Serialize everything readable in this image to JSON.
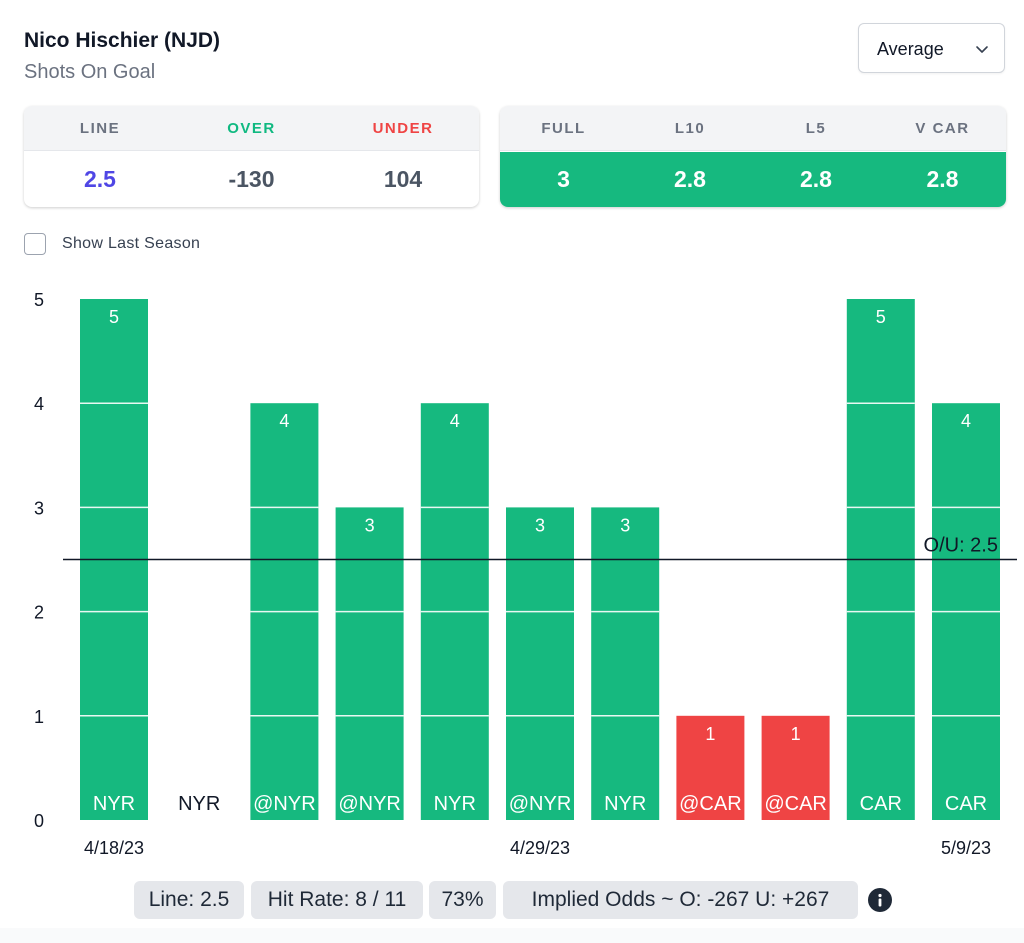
{
  "header": {
    "player_name": "Nico Hischier (NJD)",
    "stat_name": "Shots On Goal",
    "dropdown": {
      "selected": "Average",
      "icon": "chevron-down-icon"
    }
  },
  "odds_card": {
    "headers": [
      "LINE",
      "OVER",
      "UNDER"
    ],
    "values": [
      "2.5",
      "-130",
      "104"
    ],
    "colors": {
      "line": "#4f46e5",
      "over": "#10b981",
      "under": "#ef4444"
    }
  },
  "averages_card": {
    "headers": [
      "FULL",
      "L10",
      "L5",
      "V CAR"
    ],
    "values": [
      "3",
      "2.8",
      "2.8",
      "2.8"
    ],
    "color": "#16b97f"
  },
  "show_last_season": {
    "label": "Show Last Season",
    "checked": false
  },
  "chart_data": {
    "type": "bar",
    "title": "",
    "xlabel": "",
    "ylabel": "",
    "ylim": [
      0,
      5
    ],
    "yticks": [
      0,
      1,
      2,
      3,
      4,
      5
    ],
    "categories": [
      "NYR",
      "NYR",
      "@NYR",
      "@NYR",
      "NYR",
      "@NYR",
      "NYR",
      "@CAR",
      "@CAR",
      "CAR",
      "CAR"
    ],
    "values": [
      5,
      0,
      4,
      3,
      4,
      3,
      3,
      1,
      1,
      5,
      4
    ],
    "date_labels": [
      {
        "index": 0,
        "label": "4/18/23"
      },
      {
        "index": 5,
        "label": "4/29/23"
      },
      {
        "index": 10,
        "label": "5/9/23"
      }
    ],
    "line": {
      "value": 2.5,
      "label": "O/U: 2.5"
    },
    "colors": {
      "over": "#16b97f",
      "under": "#ef4444"
    }
  },
  "summary": {
    "line": "Line: 2.5",
    "hit_rate": "Hit Rate: 8 / 11",
    "percent": "73%",
    "implied_odds": "Implied Odds ~ O: -267 U: +267",
    "info_icon": "info-icon"
  }
}
